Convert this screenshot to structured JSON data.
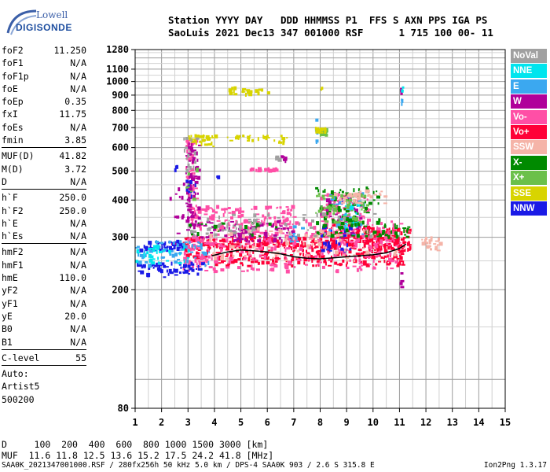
{
  "logo": {
    "line1": "Lowell",
    "line2": "DIGISONDE"
  },
  "header": {
    "line1": "Station YYYY DAY   DDD HHMMSS P1  FFS S AXN PPS IGA PS",
    "line2": "SaoLuis 2021 Dec13 347 001000 RSF      1 715 100 00- 11"
  },
  "params": {
    "group1": [
      {
        "name": "foF2",
        "value": "11.250"
      },
      {
        "name": "foF1",
        "value": "N/A"
      },
      {
        "name": "foF1p",
        "value": "N/A"
      },
      {
        "name": "foE",
        "value": "N/A"
      },
      {
        "name": "foEp",
        "value": "0.35"
      },
      {
        "name": "fxI",
        "value": "11.75"
      },
      {
        "name": "foEs",
        "value": "N/A"
      },
      {
        "name": "fmin",
        "value": "3.85"
      }
    ],
    "group2": [
      {
        "name": "MUF(D)",
        "value": "41.82"
      },
      {
        "name": "M(D)",
        "value": "3.72"
      },
      {
        "name": "D",
        "value": "N/A"
      }
    ],
    "group3": [
      {
        "name": "h`F",
        "value": "250.0"
      },
      {
        "name": "h`F2",
        "value": "250.0"
      },
      {
        "name": "h`E",
        "value": "N/A"
      },
      {
        "name": "h`Es",
        "value": "N/A"
      }
    ],
    "group4": [
      {
        "name": "hmF2",
        "value": "N/A"
      },
      {
        "name": "hmF1",
        "value": "N/A"
      },
      {
        "name": "hmE",
        "value": "110.0"
      },
      {
        "name": "yF2",
        "value": "N/A"
      },
      {
        "name": "yF1",
        "value": "N/A"
      },
      {
        "name": "yE",
        "value": "20.0"
      },
      {
        "name": "B0",
        "value": "N/A"
      },
      {
        "name": "B1",
        "value": "N/A"
      }
    ],
    "group5": [
      {
        "name": "C-level",
        "value": "55"
      }
    ],
    "notes": [
      "Auto:",
      "Artist5",
      "500200"
    ]
  },
  "legend": [
    {
      "label": "NoVal",
      "color": "#a0a0a0"
    },
    {
      "label": "NNE",
      "color": "#00e5ee"
    },
    {
      "label": "E",
      "color": "#3ba8f0"
    },
    {
      "label": "W",
      "color": "#b0009a"
    },
    {
      "label": "Vo-",
      "color": "#ff4fa6"
    },
    {
      "label": "Vo+",
      "color": "#ff0037"
    },
    {
      "label": "SSW",
      "color": "#f5b4a8"
    },
    {
      "label": "X-",
      "color": "#008a00"
    },
    {
      "label": "X+",
      "color": "#6bc04a"
    },
    {
      "label": "SSE",
      "color": "#d8d400"
    },
    {
      "label": "NNW",
      "color": "#1a1ae6"
    }
  ],
  "footer": {
    "row1": "D     100  200  400  600  800 1000 1500 3000 [km]",
    "row2": "MUF  11.6 11.8 12.5 13.6 15.2 17.5 24.2 41.8 [MHz]",
    "file": "SAA0K_2021347001000.RSF / 280fx256h 50 kHz 5.0 km / DPS-4 SAA0K 903 / 2.6 S 315.8 E",
    "version": "Ion2Png 1.3.17"
  },
  "chart_data": {
    "type": "scatter",
    "xlim": [
      1,
      15
    ],
    "ylim": [
      80,
      1280
    ],
    "y_scale": "log",
    "x_ticks": [
      1,
      2,
      3,
      4,
      5,
      6,
      7,
      8,
      9,
      10,
      11,
      12,
      13,
      14,
      15
    ],
    "y_ticks": [
      80,
      200,
      300,
      400,
      500,
      600,
      700,
      800,
      900,
      1000,
      1100,
      1280
    ],
    "grid": true,
    "trace_color": "#000000",
    "trace": [
      [
        3.9,
        260
      ],
      [
        4.5,
        268
      ],
      [
        5.0,
        272
      ],
      [
        5.5,
        270
      ],
      [
        6.0,
        268
      ],
      [
        6.5,
        264
      ],
      [
        7.0,
        258
      ],
      [
        7.5,
        255
      ],
      [
        8.0,
        254
      ],
      [
        8.5,
        256
      ],
      [
        9.0,
        258
      ],
      [
        9.5,
        260
      ],
      [
        10.0,
        262
      ],
      [
        10.5,
        266
      ],
      [
        11.0,
        275
      ],
      [
        11.25,
        285
      ]
    ],
    "series": [
      {
        "color": "#ff0037",
        "clusters": [
          [
            4.0,
            11.2,
            240,
            300,
            420
          ],
          [
            2.8,
            4.0,
            255,
            300,
            60
          ],
          [
            8.0,
            10.0,
            300,
            330,
            60
          ],
          [
            10.0,
            11.4,
            270,
            320,
            70
          ]
        ]
      },
      {
        "color": "#ff4fa6",
        "clusters": [
          [
            3.8,
            11.0,
            230,
            340,
            300
          ],
          [
            2.8,
            3.8,
            230,
            300,
            60
          ],
          [
            8.0,
            9.8,
            330,
            420,
            90
          ],
          [
            3.0,
            7.0,
            320,
            380,
            110
          ],
          [
            2.9,
            3.3,
            340,
            640,
            60
          ],
          [
            5.3,
            6.3,
            500,
            510,
            25
          ]
        ]
      },
      {
        "color": "#b0009a",
        "clusters": [
          [
            2.9,
            3.4,
            300,
            620,
            80
          ],
          [
            3.4,
            7.0,
            290,
            340,
            80
          ],
          [
            8.0,
            9.5,
            300,
            420,
            40
          ],
          [
            2.2,
            3.0,
            280,
            480,
            15
          ],
          [
            11.0,
            11.05,
            200,
            230,
            5
          ],
          [
            11.0,
            11.05,
            900,
            960,
            5
          ],
          [
            6.5,
            6.7,
            540,
            560,
            6
          ]
        ]
      },
      {
        "color": "#1a1ae6",
        "clusters": [
          [
            1.0,
            3.5,
            220,
            245,
            60
          ],
          [
            1.0,
            2.8,
            270,
            290,
            40
          ],
          [
            8.0,
            9.2,
            270,
            330,
            25
          ],
          [
            2.4,
            2.6,
            500,
            520,
            3
          ],
          [
            2.9,
            3.3,
            400,
            470,
            10
          ],
          [
            4.0,
            4.2,
            470,
            480,
            3
          ]
        ]
      },
      {
        "color": "#3ba8f0",
        "clusters": [
          [
            1.0,
            3.8,
            240,
            290,
            60
          ],
          [
            8.3,
            9.6,
            300,
            420,
            40
          ],
          [
            6.8,
            7.3,
            290,
            330,
            10
          ],
          [
            7.8,
            7.85,
            600,
            750,
            5
          ],
          [
            11.05,
            11.1,
            830,
            870,
            3
          ]
        ]
      },
      {
        "color": "#00e5ee",
        "clusters": [
          [
            1.0,
            3.0,
            245,
            280,
            35
          ],
          [
            8.8,
            9.4,
            320,
            400,
            20
          ],
          [
            11.05,
            11.1,
            920,
            960,
            4
          ]
        ]
      },
      {
        "color": "#008a00",
        "clusters": [
          [
            7.8,
            10.2,
            300,
            440,
            90
          ],
          [
            3.0,
            6.5,
            300,
            340,
            20
          ],
          [
            10.2,
            11.3,
            300,
            330,
            25
          ]
        ]
      },
      {
        "color": "#6bc04a",
        "clusters": [
          [
            7.8,
            9.8,
            330,
            420,
            50
          ],
          [
            2.9,
            3.3,
            400,
            520,
            10
          ],
          [
            7.9,
            8.2,
            660,
            690,
            20
          ]
        ]
      },
      {
        "color": "#d8d400",
        "clusters": [
          [
            3.0,
            6.8,
            630,
            660,
            45
          ],
          [
            4.2,
            6.0,
            900,
            950,
            25
          ],
          [
            7.8,
            8.2,
            670,
            700,
            20
          ],
          [
            3.0,
            4.0,
            600,
            640,
            10
          ],
          [
            6.4,
            6.6,
            620,
            640,
            5
          ],
          [
            8.0,
            8.05,
            940,
            950,
            2
          ]
        ]
      },
      {
        "color": "#f5b4a8",
        "clusters": [
          [
            3.8,
            11.0,
            250,
            320,
            90
          ],
          [
            9.0,
            10.4,
            390,
            430,
            20
          ],
          [
            11.8,
            12.5,
            270,
            300,
            20
          ],
          [
            8.5,
            9.4,
            390,
            420,
            15
          ]
        ]
      },
      {
        "color": "#a0a0a0",
        "clusters": [
          [
            3.0,
            10.0,
            300,
            360,
            60
          ],
          [
            2.8,
            3.3,
            500,
            650,
            15
          ],
          [
            6.2,
            6.6,
            540,
            560,
            5
          ]
        ]
      }
    ]
  }
}
